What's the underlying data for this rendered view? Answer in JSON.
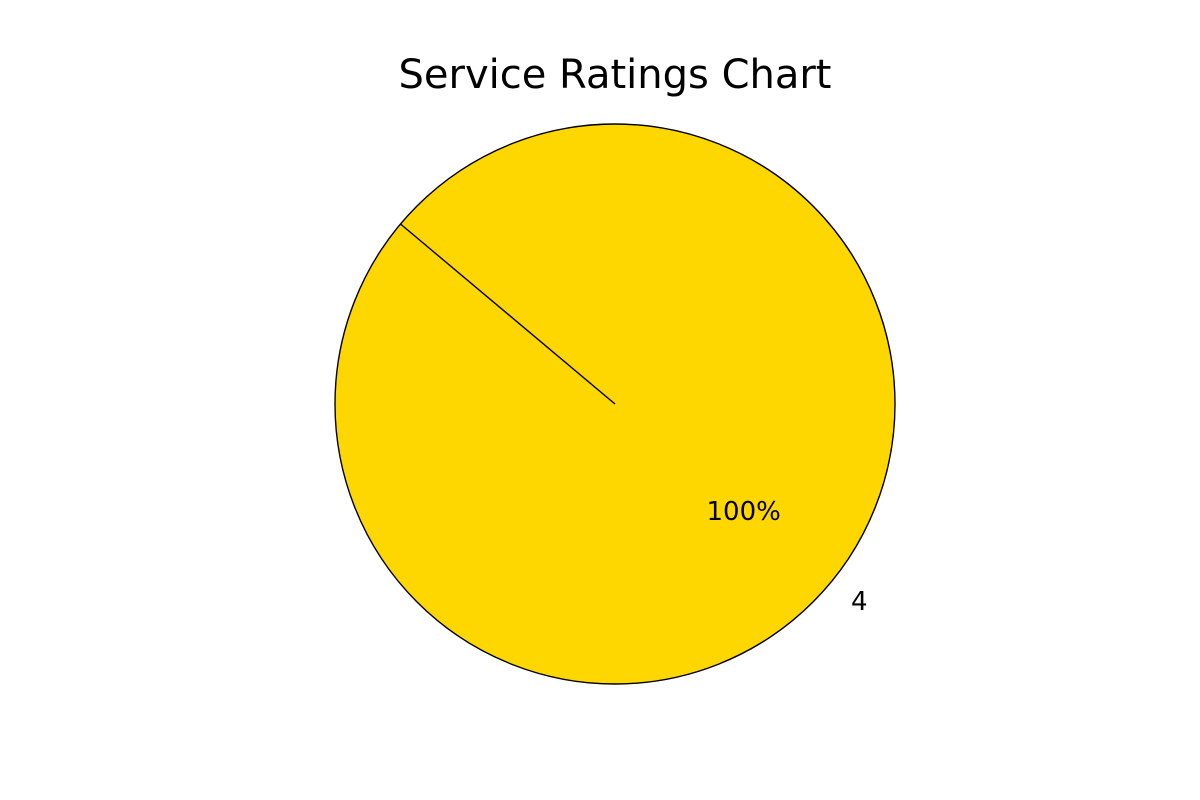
{
  "chart_data": {
    "type": "pie",
    "title": "Service Ratings Chart",
    "categories": [
      "4"
    ],
    "values": [
      100
    ],
    "percent_labels": [
      "100%"
    ],
    "colors": [
      "#FFD700"
    ],
    "edge_color": "#000000",
    "legend": "none"
  }
}
